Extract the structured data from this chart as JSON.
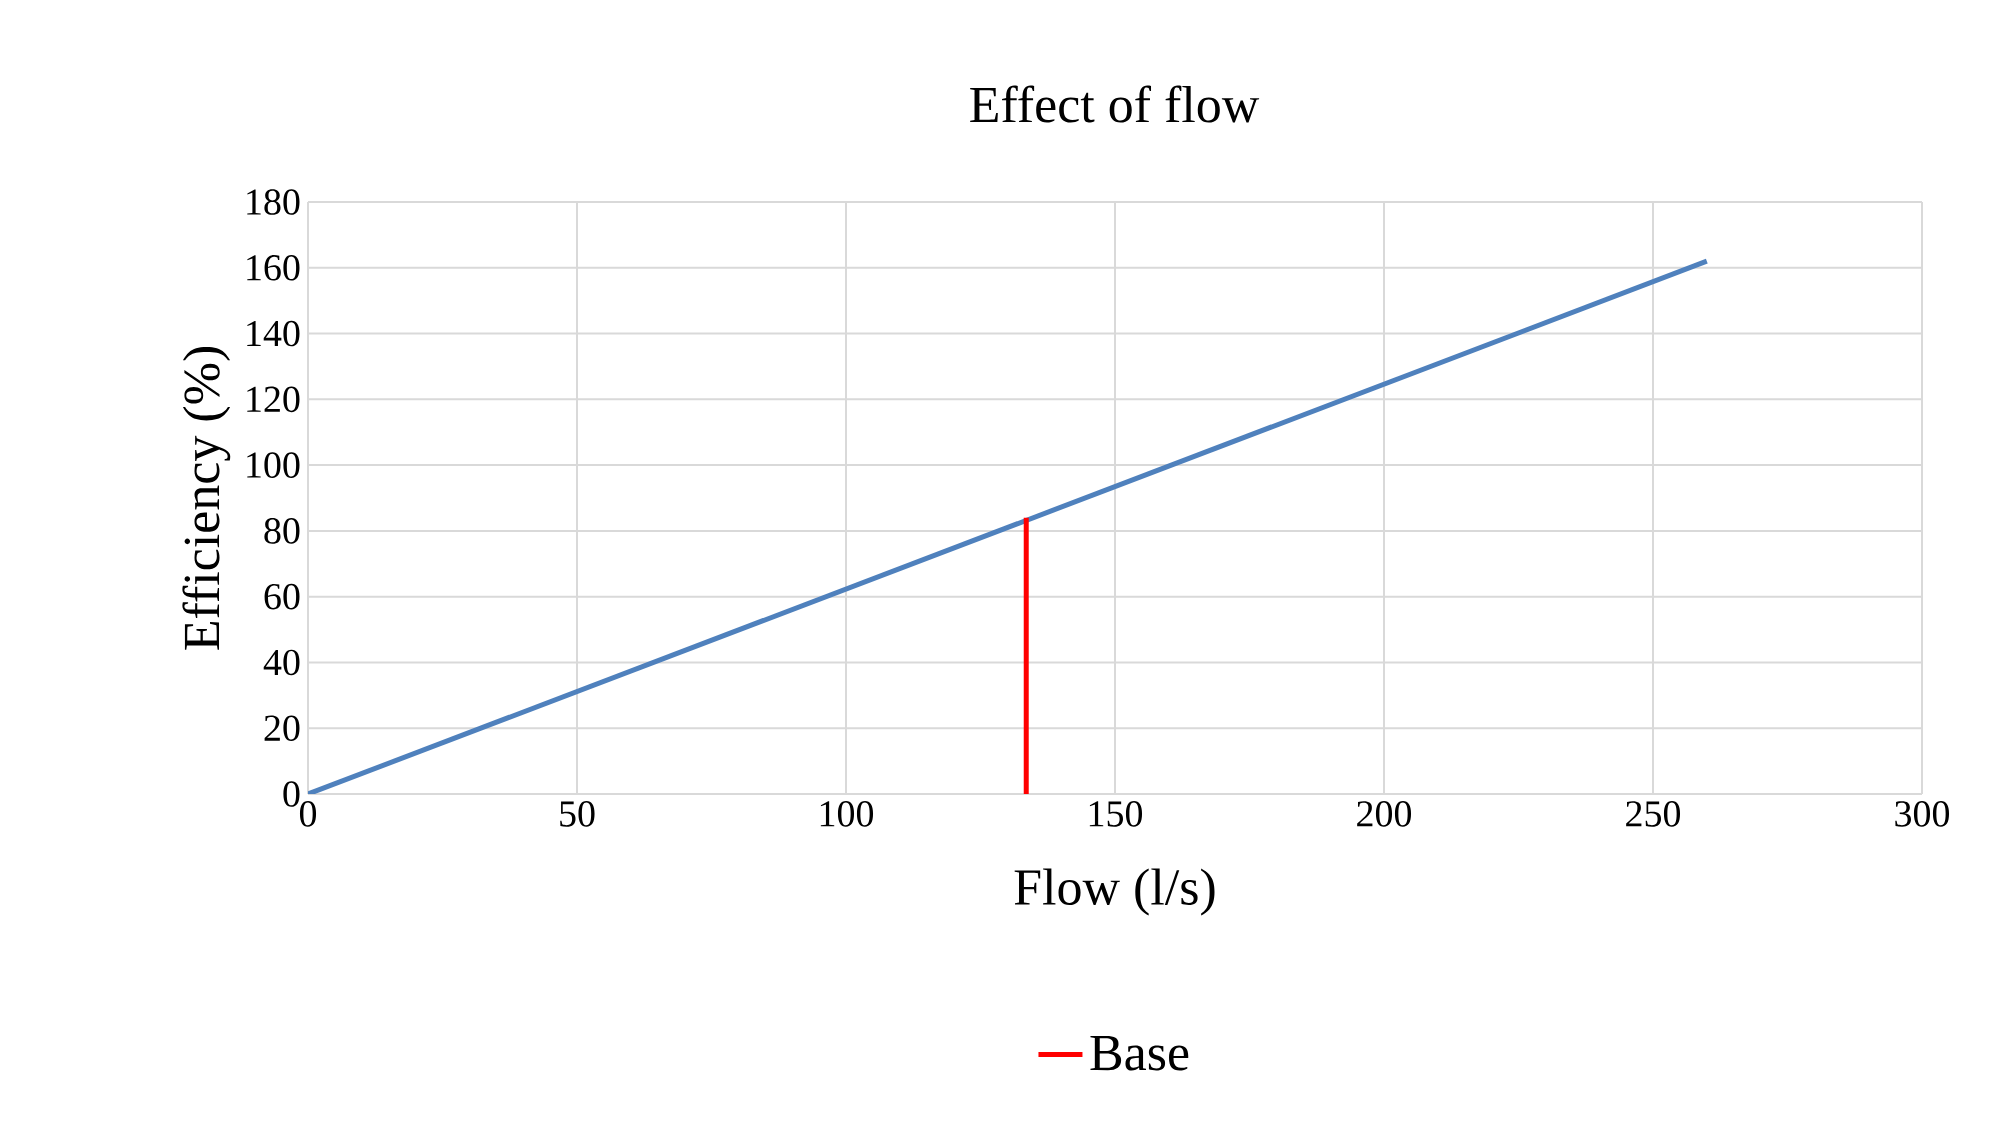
{
  "chart_data": {
    "type": "line",
    "title": "Effect of flow",
    "xlabel": "Flow (l/s)",
    "ylabel": "Efficiency (%)",
    "series": [
      {
        "color": "#4f81bd",
        "x": [
          0,
          260
        ],
        "values": [
          0,
          162
        ]
      },
      {
        "name": "Base",
        "color": "#ff0000",
        "x": [
          133.5,
          133.5
        ],
        "values": [
          0,
          84
        ]
      }
    ],
    "xlim": [
      0,
      300
    ],
    "ylim": [
      0,
      180
    ],
    "xticks": [
      0,
      50,
      100,
      150,
      200,
      250,
      300
    ],
    "yticks": [
      0,
      20,
      40,
      60,
      80,
      100,
      120,
      140,
      160,
      180
    ],
    "grid": true,
    "legend": "bottom",
    "marker": "none",
    "line_style": "solid"
  }
}
